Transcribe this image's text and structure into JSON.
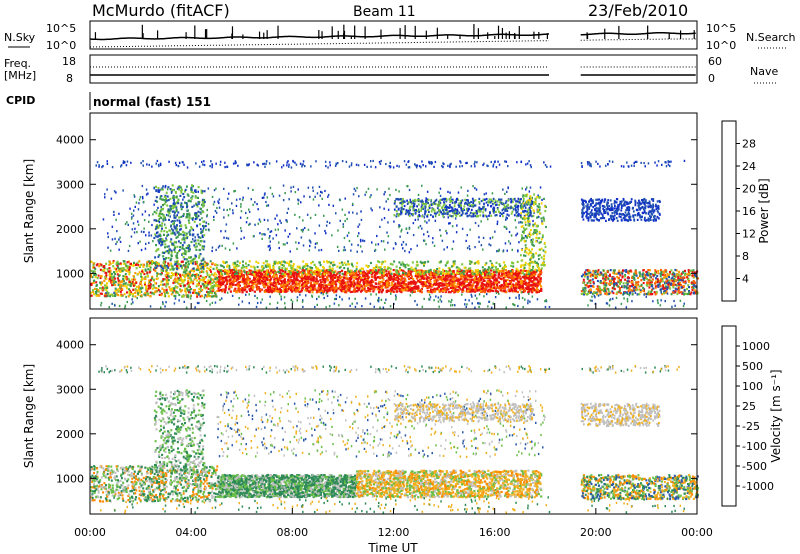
{
  "header": {
    "station": "McMurdo (fitACF)",
    "beam": "Beam 11",
    "date": "23/Feb/2010"
  },
  "summary_panels": {
    "nsky_label": "N.Sky",
    "nsky_ticks": [
      "10^5",
      "10^0"
    ],
    "nsky_right_ticks": [
      "10^5",
      "10^0"
    ],
    "nsearch_label": "N.Search",
    "freq_label_line1": "Freq.",
    "freq_label_line2": "[MHz]",
    "freq_ticks": [
      "18",
      "8"
    ],
    "nave_ticks": [
      "60",
      "0"
    ],
    "nave_label": "Nave",
    "cpid_label": "CPID",
    "cpid_value": "normal (fast) 151"
  },
  "power_panel": {
    "ylabel": "Slant Range [km]",
    "yticks": [
      "4000",
      "3000",
      "2000",
      "1000"
    ],
    "colorbar_label": "Power [dB]",
    "colorbar_ticks": [
      "28",
      "24",
      "20",
      "16",
      "12",
      "8",
      "4"
    ],
    "colorbar_colors": [
      "#0000ff",
      "#1f4fb0",
      "#2e8b57",
      "#7cc63c",
      "#f0d000",
      "#ff9a00",
      "#ff5a00",
      "#e00000"
    ]
  },
  "velocity_panel": {
    "ylabel": "Slant Range [km]",
    "yticks": [
      "4000",
      "3000",
      "2000",
      "1000"
    ],
    "colorbar_label": "Velocity [m s⁻¹]",
    "colorbar_ticks": [
      "1000",
      "500",
      "100",
      "25",
      "-25",
      "-100",
      "-500",
      "-1000"
    ],
    "colorbar_colors": [
      "#2233bb",
      "#2a6aa0",
      "#2e8b57",
      "#6cc04a",
      "#c8c8c8",
      "#f0b020",
      "#ff8a00",
      "#ff5000",
      "#e00000"
    ]
  },
  "xaxis": {
    "label": "Time UT",
    "ticks": [
      "00:00",
      "04:00",
      "08:00",
      "12:00",
      "16:00",
      "20:00",
      "00:00"
    ]
  },
  "chart_data": {
    "type": "heatmap",
    "title": "McMurdo (fitACF)",
    "xlabel": "Time UT",
    "ylabel": "Slant Range [km]",
    "x_range_hours": [
      0,
      24
    ],
    "y_range_km": [
      200,
      4600
    ],
    "data_gap_hours": [
      18.2,
      19.4
    ],
    "series": [
      {
        "name": "Power [dB]",
        "range": [
          4,
          28
        ],
        "main_echo_range_km": [
          600,
          1200
        ]
      },
      {
        "name": "Velocity [m s-1]",
        "range": [
          -1000,
          1000
        ],
        "main_echo_range_km": [
          600,
          1200
        ]
      }
    ]
  }
}
